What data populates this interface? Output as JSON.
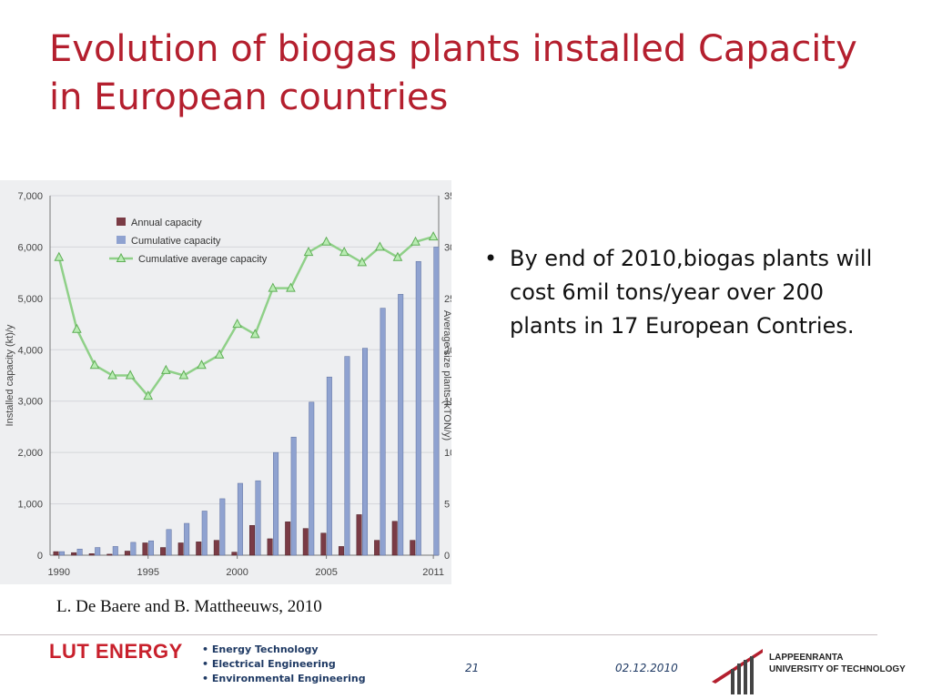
{
  "slide": {
    "title": "Evolution of biogas plants installed Capacity in European countries",
    "bullets": [
      "By end of 2010,biogas plants will cost 6mil tons/year over 200 plants in 17 European Contries."
    ],
    "source": "L. De Baere and B. Mattheeuws, 2010"
  },
  "footer": {
    "logo_text": "LUT ENERGY",
    "departments": [
      "• Energy Technology",
      "• Electrical Engineering",
      "• Environmental Engineering"
    ],
    "page_number": "21",
    "date": "02.12.2010",
    "university_lines": [
      "LAPPEENRANTA",
      "UNIVERSITY OF TECHNOLOGY"
    ]
  },
  "colors": {
    "title": "#b41f2e",
    "annual_bar": "#7a3b45",
    "cumulative_bar": "#8fa2d0",
    "average_line": "#8fd088",
    "chart_background": "#eeeff1"
  },
  "chart_data": {
    "type": "bar",
    "years": [
      1990,
      1991,
      1992,
      1993,
      1994,
      1995,
      1996,
      1997,
      1998,
      1999,
      2000,
      2001,
      2002,
      2003,
      2004,
      2005,
      2006,
      2007,
      2008,
      2009,
      2010,
      2011
    ],
    "x_tick_labels": [
      "1990",
      "1995",
      "2000",
      "2005",
      "2011"
    ],
    "x_tick_years": [
      1990,
      1995,
      2000,
      2005,
      2011
    ],
    "ylabel": "Installed capacity (kt)/y",
    "y2label": "Average size plants (kTON/y)",
    "ylim": [
      0,
      7000
    ],
    "y2lim": [
      0,
      35
    ],
    "y_ticks": [
      "0",
      "1,000",
      "2,000",
      "3,000",
      "4,000",
      "5,000",
      "6,000",
      "7,000"
    ],
    "y_tick_values": [
      0,
      1000,
      2000,
      3000,
      4000,
      5000,
      6000,
      7000
    ],
    "y2_ticks": [
      "0",
      "5",
      "10",
      "15",
      "20",
      "25",
      "30",
      "35"
    ],
    "y2_tick_values": [
      0,
      5,
      10,
      15,
      20,
      25,
      30,
      35
    ],
    "legend_position": "top-left",
    "series": [
      {
        "name": "Annual capacity",
        "type": "bar",
        "axis": "left",
        "values": [
          70,
          50,
          30,
          20,
          80,
          240,
          150,
          240,
          260,
          290,
          60,
          580,
          320,
          650,
          520,
          430,
          170,
          790,
          290,
          660,
          290,
          0
        ]
      },
      {
        "name": "Cumulative capacity",
        "type": "bar",
        "axis": "left",
        "values": [
          70,
          120,
          150,
          170,
          250,
          280,
          500,
          620,
          860,
          1100,
          1400,
          1450,
          2000,
          2300,
          2980,
          3470,
          3870,
          4030,
          4810,
          5080,
          5720,
          6000
        ]
      },
      {
        "name": "Cumulative average capacity",
        "type": "line",
        "axis": "right",
        "values": [
          29,
          22,
          18.5,
          17.5,
          17.5,
          15.5,
          18,
          17.5,
          18.5,
          19.5,
          22.5,
          21.5,
          26,
          26,
          29.5,
          30.5,
          29.5,
          28.5,
          30,
          29,
          30.5,
          31
        ]
      }
    ]
  }
}
